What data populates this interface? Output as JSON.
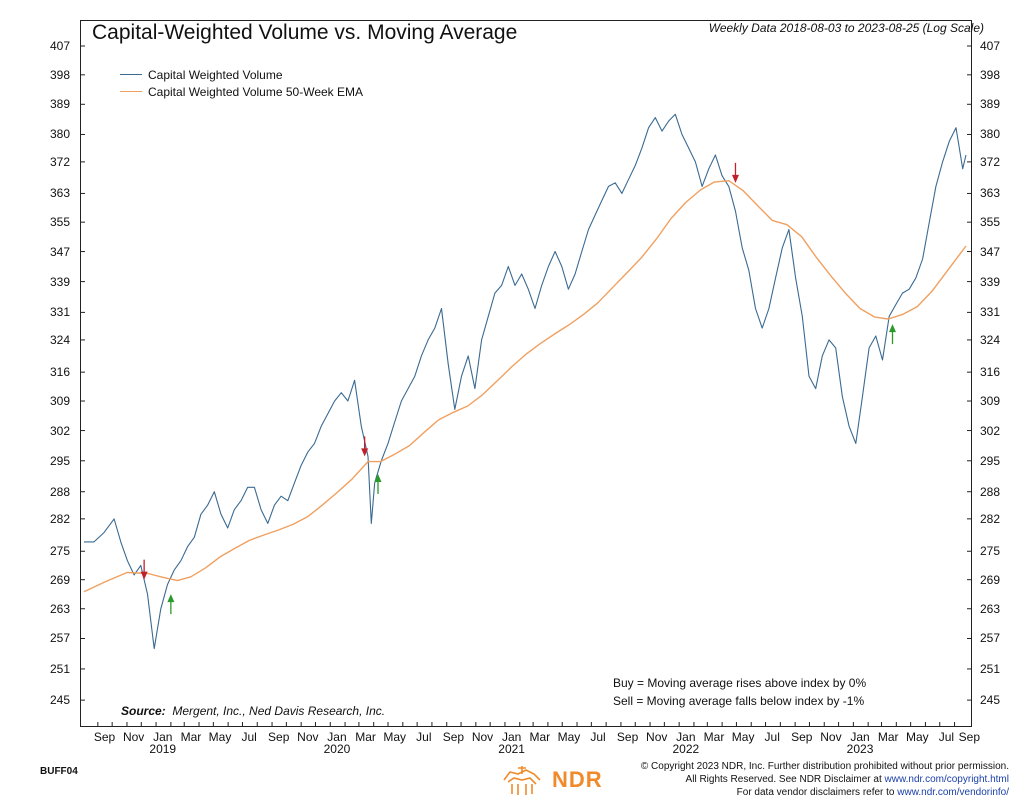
{
  "title": "Capital-Weighted Volume vs. Moving Average",
  "subtitle": "Weekly Data 2018-08-03 to 2023-08-25 (Log Scale)",
  "source_label": "Source:",
  "source_text": "Mergent, Inc., Ned Davis Research, Inc.",
  "notes": {
    "buy": "Buy = Moving average rises above index by 0%",
    "sell": "Sell = Moving average falls below index by -1%"
  },
  "chart_code": "BUFF04",
  "footer": {
    "line1": "© Copyright 2023 NDR, Inc. Further distribution prohibited without prior permission.",
    "line2_prefix": "All Rights Reserved. See NDR Disclaimer at ",
    "line2_link": "www.ndr.com/copyright.html",
    "line3_prefix": "For data vendor disclaimers refer to ",
    "line3_link": "www.ndr.com/vendorinfo/"
  },
  "logo_text": "NDR",
  "colors": {
    "volume": "#3a6a92",
    "ema": "#f0a060",
    "buy_arrow": "#2a9a2a",
    "sell_arrow": "#c0202a",
    "logo": "#f08a2a"
  },
  "chart_data": {
    "type": "line",
    "scale": "log",
    "ylim": [
      242,
      407
    ],
    "yticks": [
      245,
      251,
      257,
      263,
      269,
      275,
      282,
      288,
      295,
      302,
      309,
      316,
      324,
      331,
      339,
      347,
      355,
      363,
      372,
      380,
      389,
      398,
      407
    ],
    "xlim": [
      "2018-08-03",
      "2023-08-25"
    ],
    "xtick_labels": [
      {
        "label": "Sep",
        "date": "2018-09-15"
      },
      {
        "label": "Nov",
        "date": "2018-11-15"
      },
      {
        "label": "Jan",
        "date": "2019-01-15"
      },
      {
        "label": "Mar",
        "date": "2019-03-15"
      },
      {
        "label": "May",
        "date": "2019-05-15"
      },
      {
        "label": "Jul",
        "date": "2019-07-15"
      },
      {
        "label": "Sep",
        "date": "2019-09-15"
      },
      {
        "label": "Nov",
        "date": "2019-11-15"
      },
      {
        "label": "Jan",
        "date": "2020-01-15"
      },
      {
        "label": "Mar",
        "date": "2020-03-15"
      },
      {
        "label": "May",
        "date": "2020-05-15"
      },
      {
        "label": "Jul",
        "date": "2020-07-15"
      },
      {
        "label": "Sep",
        "date": "2020-09-15"
      },
      {
        "label": "Nov",
        "date": "2020-11-15"
      },
      {
        "label": "Jan",
        "date": "2021-01-15"
      },
      {
        "label": "Mar",
        "date": "2021-03-15"
      },
      {
        "label": "May",
        "date": "2021-05-15"
      },
      {
        "label": "Jul",
        "date": "2021-07-15"
      },
      {
        "label": "Sep",
        "date": "2021-09-15"
      },
      {
        "label": "Nov",
        "date": "2021-11-15"
      },
      {
        "label": "Jan",
        "date": "2022-01-15"
      },
      {
        "label": "Mar",
        "date": "2022-03-15"
      },
      {
        "label": "May",
        "date": "2022-05-15"
      },
      {
        "label": "Jul",
        "date": "2022-07-15"
      },
      {
        "label": "Sep",
        "date": "2022-09-15"
      },
      {
        "label": "Nov",
        "date": "2022-11-15"
      },
      {
        "label": "Jan",
        "date": "2023-01-15"
      },
      {
        "label": "Mar",
        "date": "2023-03-15"
      },
      {
        "label": "May",
        "date": "2023-05-15"
      },
      {
        "label": "Jul",
        "date": "2023-07-15"
      },
      {
        "label": "Sep",
        "date": "2023-09-01"
      }
    ],
    "year_labels": [
      {
        "label": "2019",
        "date": "2019-01-15"
      },
      {
        "label": "2020",
        "date": "2020-01-15"
      },
      {
        "label": "2021",
        "date": "2021-01-15"
      },
      {
        "label": "2022",
        "date": "2022-01-15"
      },
      {
        "label": "2023",
        "date": "2023-01-15"
      }
    ],
    "series": [
      {
        "name": "Capital Weighted Volume",
        "points": [
          [
            "2018-08-03",
            277
          ],
          [
            "2018-08-24",
            277
          ],
          [
            "2018-09-14",
            279
          ],
          [
            "2018-10-05",
            282
          ],
          [
            "2018-10-19",
            277
          ],
          [
            "2018-11-02",
            273
          ],
          [
            "2018-11-16",
            270
          ],
          [
            "2018-11-30",
            272
          ],
          [
            "2018-12-14",
            266
          ],
          [
            "2018-12-28",
            255
          ],
          [
            "2019-01-11",
            263
          ],
          [
            "2019-01-25",
            268
          ],
          [
            "2019-02-08",
            271
          ],
          [
            "2019-02-22",
            273
          ],
          [
            "2019-03-08",
            276
          ],
          [
            "2019-03-22",
            278
          ],
          [
            "2019-04-05",
            283
          ],
          [
            "2019-04-19",
            285
          ],
          [
            "2019-05-03",
            288
          ],
          [
            "2019-05-17",
            283
          ],
          [
            "2019-05-31",
            280
          ],
          [
            "2019-06-14",
            284
          ],
          [
            "2019-06-28",
            286
          ],
          [
            "2019-07-12",
            289
          ],
          [
            "2019-07-26",
            289
          ],
          [
            "2019-08-09",
            284
          ],
          [
            "2019-08-23",
            281
          ],
          [
            "2019-09-06",
            285
          ],
          [
            "2019-09-20",
            287
          ],
          [
            "2019-10-04",
            286
          ],
          [
            "2019-10-18",
            290
          ],
          [
            "2019-11-01",
            294
          ],
          [
            "2019-11-15",
            297
          ],
          [
            "2019-11-29",
            299
          ],
          [
            "2019-12-13",
            303
          ],
          [
            "2019-12-27",
            306
          ],
          [
            "2020-01-10",
            309
          ],
          [
            "2020-01-24",
            311
          ],
          [
            "2020-02-07",
            309
          ],
          [
            "2020-02-21",
            314
          ],
          [
            "2020-03-06",
            303
          ],
          [
            "2020-03-20",
            296
          ],
          [
            "2020-03-27",
            281
          ],
          [
            "2020-04-03",
            290
          ],
          [
            "2020-04-17",
            295
          ],
          [
            "2020-05-01",
            299
          ],
          [
            "2020-05-15",
            304
          ],
          [
            "2020-05-29",
            309
          ],
          [
            "2020-06-12",
            312
          ],
          [
            "2020-06-26",
            315
          ],
          [
            "2020-07-10",
            320
          ],
          [
            "2020-07-24",
            324
          ],
          [
            "2020-08-07",
            327
          ],
          [
            "2020-08-21",
            332
          ],
          [
            "2020-09-04",
            318
          ],
          [
            "2020-09-18",
            307
          ],
          [
            "2020-10-02",
            315
          ],
          [
            "2020-10-16",
            320
          ],
          [
            "2020-10-30",
            312
          ],
          [
            "2020-11-13",
            324
          ],
          [
            "2020-11-27",
            330
          ],
          [
            "2020-12-11",
            336
          ],
          [
            "2020-12-25",
            338
          ],
          [
            "2021-01-08",
            343
          ],
          [
            "2021-01-22",
            338
          ],
          [
            "2021-02-05",
            341
          ],
          [
            "2021-02-19",
            337
          ],
          [
            "2021-03-05",
            332
          ],
          [
            "2021-03-19",
            338
          ],
          [
            "2021-04-02",
            343
          ],
          [
            "2021-04-16",
            347
          ],
          [
            "2021-04-30",
            343
          ],
          [
            "2021-05-14",
            337
          ],
          [
            "2021-05-28",
            341
          ],
          [
            "2021-06-11",
            347
          ],
          [
            "2021-06-25",
            353
          ],
          [
            "2021-07-09",
            357
          ],
          [
            "2021-07-23",
            361
          ],
          [
            "2021-08-06",
            365
          ],
          [
            "2021-08-20",
            366
          ],
          [
            "2021-09-03",
            363
          ],
          [
            "2021-09-17",
            367
          ],
          [
            "2021-10-01",
            371
          ],
          [
            "2021-10-15",
            376
          ],
          [
            "2021-10-29",
            382
          ],
          [
            "2021-11-12",
            385
          ],
          [
            "2021-11-26",
            381
          ],
          [
            "2021-12-10",
            384
          ],
          [
            "2021-12-24",
            386
          ],
          [
            "2022-01-07",
            380
          ],
          [
            "2022-01-21",
            376
          ],
          [
            "2022-02-04",
            372
          ],
          [
            "2022-02-18",
            365
          ],
          [
            "2022-03-04",
            370
          ],
          [
            "2022-03-18",
            374
          ],
          [
            "2022-04-01",
            368
          ],
          [
            "2022-04-15",
            365
          ],
          [
            "2022-04-29",
            358
          ],
          [
            "2022-05-13",
            348
          ],
          [
            "2022-05-27",
            342
          ],
          [
            "2022-06-10",
            332
          ],
          [
            "2022-06-24",
            327
          ],
          [
            "2022-07-08",
            332
          ],
          [
            "2022-07-22",
            340
          ],
          [
            "2022-08-05",
            348
          ],
          [
            "2022-08-19",
            353
          ],
          [
            "2022-09-02",
            340
          ],
          [
            "2022-09-16",
            330
          ],
          [
            "2022-09-30",
            315
          ],
          [
            "2022-10-14",
            312
          ],
          [
            "2022-10-28",
            320
          ],
          [
            "2022-11-11",
            324
          ],
          [
            "2022-11-25",
            322
          ],
          [
            "2022-12-09",
            310
          ],
          [
            "2022-12-23",
            303
          ],
          [
            "2023-01-06",
            299
          ],
          [
            "2023-01-20",
            310
          ],
          [
            "2023-02-03",
            322
          ],
          [
            "2023-02-17",
            325
          ],
          [
            "2023-03-03",
            319
          ],
          [
            "2023-03-17",
            330
          ],
          [
            "2023-03-31",
            333
          ],
          [
            "2023-04-14",
            336
          ],
          [
            "2023-04-28",
            337
          ],
          [
            "2023-05-12",
            340
          ],
          [
            "2023-05-26",
            345
          ],
          [
            "2023-06-09",
            355
          ],
          [
            "2023-06-23",
            365
          ],
          [
            "2023-07-07",
            372
          ],
          [
            "2023-07-21",
            378
          ],
          [
            "2023-08-04",
            382
          ],
          [
            "2023-08-18",
            370
          ],
          [
            "2023-08-25",
            374
          ]
        ]
      },
      {
        "name": "Capital Weighted Volume 50-Week EMA",
        "points": [
          [
            "2018-08-03",
            266.5
          ],
          [
            "2018-09-15",
            268.5
          ],
          [
            "2018-11-01",
            270.5
          ],
          [
            "2018-12-15",
            270.3
          ],
          [
            "2019-01-15",
            269.5
          ],
          [
            "2019-02-15",
            268.8
          ],
          [
            "2019-03-15",
            269.6
          ],
          [
            "2019-04-15",
            271.5
          ],
          [
            "2019-05-15",
            273.8
          ],
          [
            "2019-06-15",
            275.6
          ],
          [
            "2019-07-15",
            277.3
          ],
          [
            "2019-08-15",
            278.5
          ],
          [
            "2019-09-15",
            279.6
          ],
          [
            "2019-10-15",
            280.8
          ],
          [
            "2019-11-15",
            282.5
          ],
          [
            "2019-12-15",
            285
          ],
          [
            "2020-01-15",
            287.8
          ],
          [
            "2020-02-15",
            290.8
          ],
          [
            "2020-03-20",
            294.8
          ],
          [
            "2020-04-15",
            294.8
          ],
          [
            "2020-05-15",
            296.5
          ],
          [
            "2020-06-15",
            298.5
          ],
          [
            "2020-07-15",
            301.5
          ],
          [
            "2020-08-15",
            304.5
          ],
          [
            "2020-09-15",
            306.3
          ],
          [
            "2020-10-15",
            307.8
          ],
          [
            "2020-11-15",
            310.5
          ],
          [
            "2020-12-15",
            313.8
          ],
          [
            "2021-01-15",
            317.3
          ],
          [
            "2021-02-15",
            320.5
          ],
          [
            "2021-03-15",
            323
          ],
          [
            "2021-04-15",
            325.5
          ],
          [
            "2021-05-15",
            327.8
          ],
          [
            "2021-06-15",
            330.5
          ],
          [
            "2021-07-15",
            333.5
          ],
          [
            "2021-08-15",
            337.5
          ],
          [
            "2021-09-15",
            341.5
          ],
          [
            "2021-10-15",
            345.5
          ],
          [
            "2021-11-15",
            350.5
          ],
          [
            "2021-12-15",
            356
          ],
          [
            "2022-01-15",
            360.5
          ],
          [
            "2022-02-15",
            364
          ],
          [
            "2022-03-15",
            366.2
          ],
          [
            "2022-04-15",
            366.6
          ],
          [
            "2022-05-15",
            363.8
          ],
          [
            "2022-06-15",
            359.5
          ],
          [
            "2022-07-15",
            355.5
          ],
          [
            "2022-08-15",
            354.3
          ],
          [
            "2022-09-15",
            351
          ],
          [
            "2022-10-15",
            345.5
          ],
          [
            "2022-11-15",
            340.5
          ],
          [
            "2022-12-15",
            336
          ],
          [
            "2023-01-15",
            332
          ],
          [
            "2023-02-15",
            329.8
          ],
          [
            "2023-03-15",
            329.3
          ],
          [
            "2023-04-15",
            330.5
          ],
          [
            "2023-05-15",
            332.5
          ],
          [
            "2023-06-15",
            336.5
          ],
          [
            "2023-07-15",
            341.5
          ],
          [
            "2023-08-25",
            348.5
          ]
        ]
      }
    ],
    "signals": [
      {
        "type": "sell",
        "date": "2018-12-07",
        "value": 269
      },
      {
        "type": "buy",
        "date": "2019-02-01",
        "value": 266
      },
      {
        "type": "sell",
        "date": "2020-03-13",
        "value": 296
      },
      {
        "type": "buy",
        "date": "2020-04-10",
        "value": 292
      },
      {
        "type": "sell",
        "date": "2022-04-29",
        "value": 366
      },
      {
        "type": "buy",
        "date": "2023-03-24",
        "value": 328
      }
    ]
  }
}
